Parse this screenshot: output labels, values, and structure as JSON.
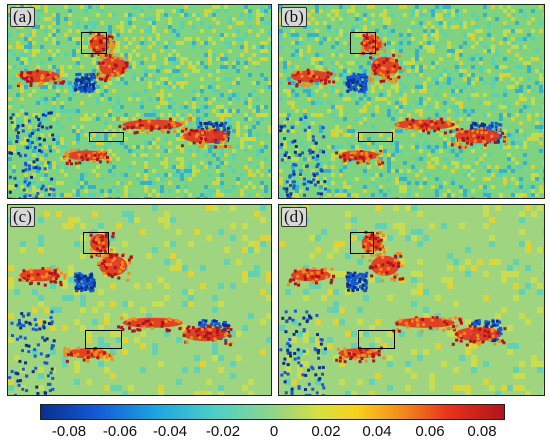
{
  "panels": [
    {
      "label": "(a)"
    },
    {
      "label": "(b)"
    },
    {
      "label": "(c)"
    },
    {
      "label": "(d)"
    }
  ],
  "colorbar": {
    "ticks": [
      "-0.08",
      "-0.06",
      "-0.04",
      "-0.02",
      "0",
      "0.02",
      "0.04",
      "0.06",
      "0.08"
    ],
    "colors": [
      "#0a2f8c",
      "#1459d6",
      "#1ea5e0",
      "#4fd0c6",
      "#8fd58a",
      "#d6e040",
      "#f7d21c",
      "#f28b1b",
      "#e9321b",
      "#b0141a"
    ]
  }
}
